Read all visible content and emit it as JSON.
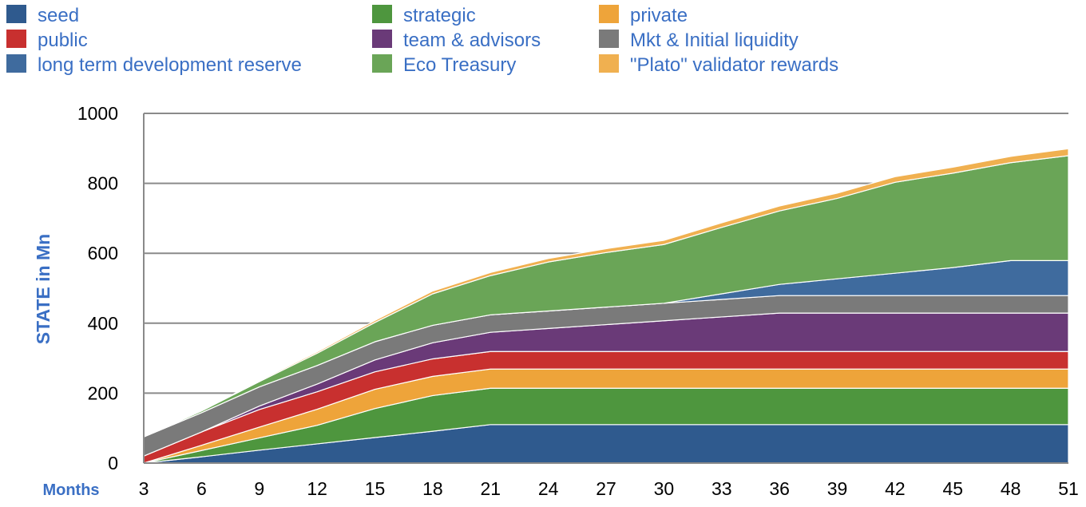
{
  "chart_data": {
    "type": "area",
    "stacked": true,
    "title": "",
    "xlabel": "Months",
    "ylabel": "STATE in Mn",
    "ylim": [
      0,
      1000
    ],
    "yticks": [
      0,
      200,
      400,
      600,
      800,
      1000
    ],
    "x": [
      3,
      6,
      9,
      12,
      15,
      18,
      21,
      24,
      27,
      30,
      33,
      36,
      39,
      42,
      45,
      48,
      51
    ],
    "grid": true,
    "legend_position": "top",
    "series": [
      {
        "name": "seed",
        "color": "#2f5a8e",
        "values": [
          0,
          18,
          37,
          55,
          73,
          91,
          110,
          110,
          110,
          110,
          110,
          110,
          110,
          110,
          110,
          110,
          110
        ]
      },
      {
        "name": "strategic",
        "color": "#4e963e",
        "values": [
          0,
          18,
          35,
          53,
          83,
          102,
          104,
          104,
          104,
          104,
          104,
          104,
          104,
          104,
          104,
          104,
          104
        ]
      },
      {
        "name": "private",
        "color": "#eea43a",
        "values": [
          0,
          15,
          31,
          46,
          55,
          55,
          55,
          55,
          55,
          55,
          55,
          55,
          55,
          55,
          55,
          55,
          55
        ]
      },
      {
        "name": "public",
        "color": "#c8302f",
        "values": [
          20,
          38,
          50,
          50,
          50,
          50,
          50,
          50,
          50,
          50,
          50,
          50,
          50,
          50,
          50,
          50,
          50
        ]
      },
      {
        "name": "team & advisors",
        "color": "#6a3a78",
        "values": [
          0,
          0,
          10,
          22,
          34,
          46,
          55,
          66,
          77,
          88,
          99,
          110,
          110,
          110,
          110,
          110,
          110
        ]
      },
      {
        "name": "Mkt & Initial liquidity",
        "color": "#7a7a7a",
        "values": [
          55,
          55,
          55,
          53,
          52,
          50,
          50,
          50,
          50,
          50,
          50,
          50,
          50,
          50,
          50,
          50,
          50
        ]
      },
      {
        "name": "long term development reserve",
        "color": "#3f6b9e",
        "values": [
          0,
          0,
          0,
          0,
          0,
          0,
          0,
          0,
          0,
          0,
          16,
          32,
          48,
          64,
          80,
          100,
          100
        ]
      },
      {
        "name": "Eco Treasury",
        "color": "#6aa557",
        "values": [
          0,
          5,
          15,
          35,
          55,
          90,
          112,
          140,
          156,
          168,
          190,
          210,
          230,
          260,
          270,
          280,
          300
        ]
      },
      {
        "name": "\"Plato\" validator rewards",
        "color": "#f0b050",
        "values": [
          0,
          1,
          3,
          4,
          6,
          8,
          9,
          10,
          11,
          12,
          13,
          14,
          15,
          16,
          17,
          18,
          20
        ]
      }
    ],
    "legend": [
      [
        "seed",
        "strategic",
        "private"
      ],
      [
        "public",
        "team & advisors",
        "Mkt & Initial liquidity"
      ],
      [
        "long term development reserve",
        "Eco Treasury",
        "\"Plato\" validator rewards"
      ]
    ]
  }
}
